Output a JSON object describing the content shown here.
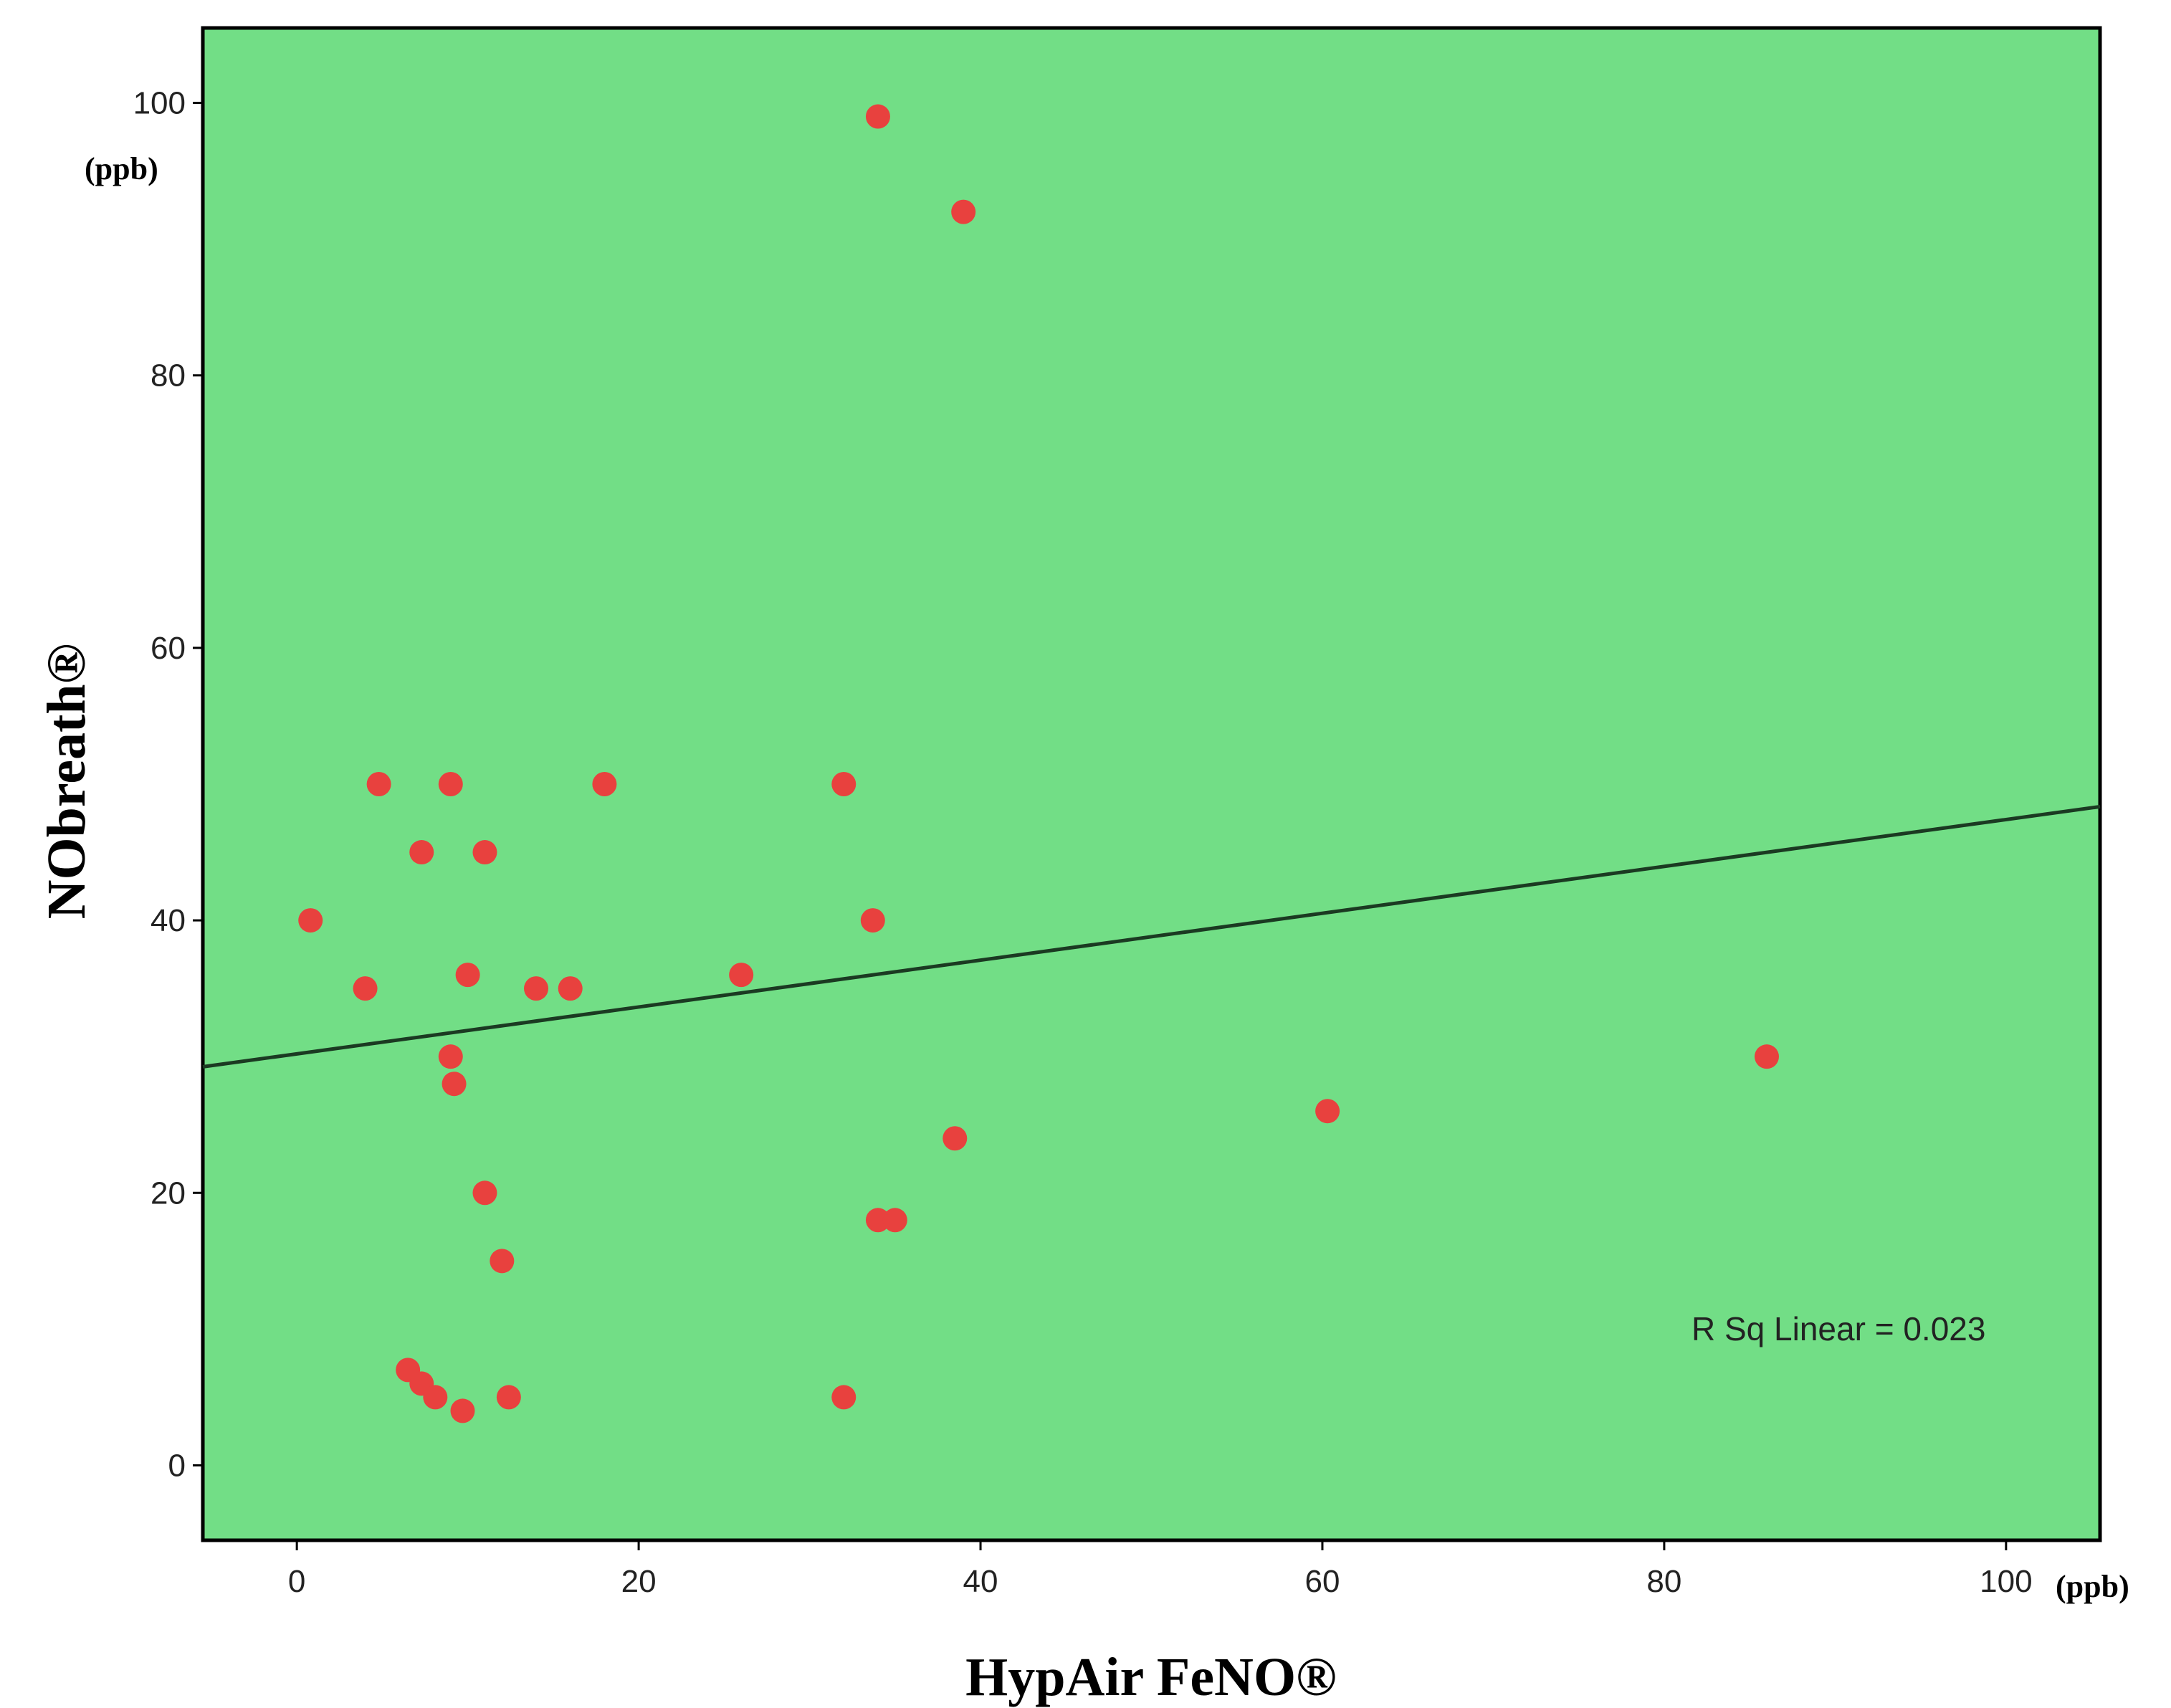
{
  "colors": {
    "plot_background": "#72de86",
    "point": "#e8413e",
    "fit_line": "#1b3a22",
    "frame": "#000000"
  },
  "chart_data": {
    "type": "scatter",
    "title": "",
    "xlabel": "HypAir FeNO®",
    "ylabel": "NObreath®",
    "x_unit": "(ppb)",
    "y_unit": "(ppb)",
    "xlim": [
      -5.5,
      105.5
    ],
    "ylim": [
      -5.5,
      105.5
    ],
    "x_ticks": [
      0,
      20,
      40,
      60,
      80,
      100
    ],
    "y_ticks": [
      0,
      20,
      40,
      60,
      80,
      100
    ],
    "grid": false,
    "points": [
      {
        "x": 0.8,
        "y": 40
      },
      {
        "x": 4.0,
        "y": 35
      },
      {
        "x": 4.8,
        "y": 50
      },
      {
        "x": 6.5,
        "y": 7
      },
      {
        "x": 7.3,
        "y": 6
      },
      {
        "x": 7.3,
        "y": 45
      },
      {
        "x": 8.1,
        "y": 5
      },
      {
        "x": 9.0,
        "y": 50
      },
      {
        "x": 9.0,
        "y": 30
      },
      {
        "x": 9.2,
        "y": 28
      },
      {
        "x": 9.7,
        "y": 4
      },
      {
        "x": 10.0,
        "y": 36
      },
      {
        "x": 11.0,
        "y": 45
      },
      {
        "x": 11.0,
        "y": 20
      },
      {
        "x": 12.0,
        "y": 15
      },
      {
        "x": 12.4,
        "y": 5
      },
      {
        "x": 14.0,
        "y": 35
      },
      {
        "x": 16.0,
        "y": 35
      },
      {
        "x": 18.0,
        "y": 50
      },
      {
        "x": 26.0,
        "y": 36
      },
      {
        "x": 32.0,
        "y": 50
      },
      {
        "x": 32.0,
        "y": 5
      },
      {
        "x": 33.7,
        "y": 40
      },
      {
        "x": 34.0,
        "y": 99
      },
      {
        "x": 34.0,
        "y": 18
      },
      {
        "x": 35.0,
        "y": 18
      },
      {
        "x": 38.5,
        "y": 24
      },
      {
        "x": 39.0,
        "y": 92
      },
      {
        "x": 60.3,
        "y": 26
      },
      {
        "x": 86.0,
        "y": 30
      }
    ],
    "fit_line": {
      "intercept": 30.2,
      "slope": 0.172
    },
    "annotation": "R Sq Linear = 0.023"
  }
}
